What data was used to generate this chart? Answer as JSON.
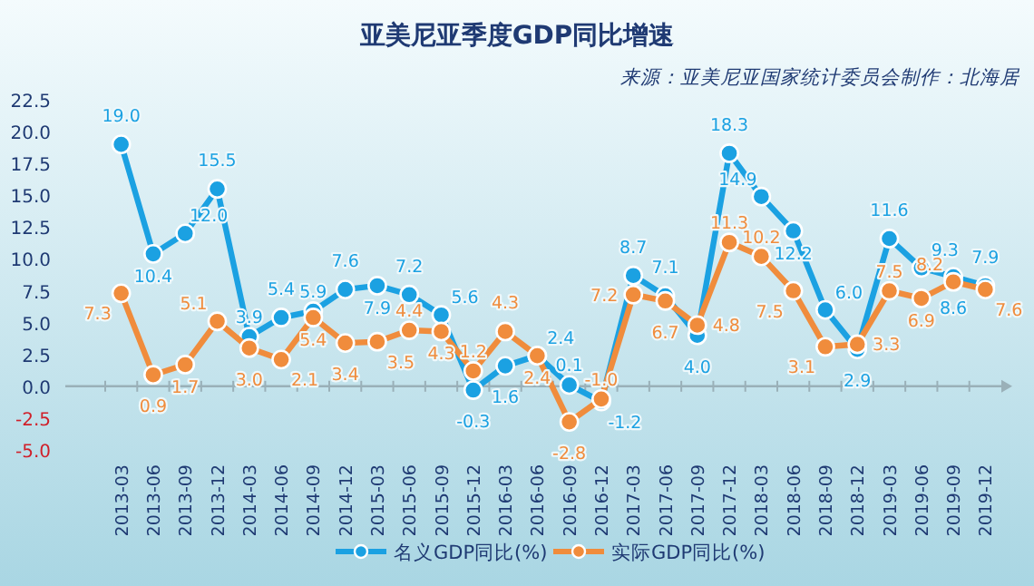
{
  "chart_data": {
    "type": "line",
    "title": "亚美尼亚季度GDP同比增速",
    "annotations": [
      "来源：亚美尼亚国家统计委员会制作：北海居"
    ],
    "categories": [
      "2013-03",
      "2013-06",
      "2013-09",
      "2013-12",
      "2014-03",
      "2014-06",
      "2014-09",
      "2014-12",
      "2015-03",
      "2015-06",
      "2015-09",
      "2015-12",
      "2016-03",
      "2016-06",
      "2016-09",
      "2016-12",
      "2017-03",
      "2017-06",
      "2017-09",
      "2017-12",
      "2018-03",
      "2018-06",
      "2018-09",
      "2018-12",
      "2019-03",
      "2019-06",
      "2019-09",
      "2019-12"
    ],
    "series": [
      {
        "name": "名义GDP同比(%)",
        "color": "#1ba1e2",
        "values": [
          19.0,
          10.4,
          12.0,
          15.5,
          3.9,
          5.4,
          5.9,
          7.6,
          7.9,
          7.2,
          5.6,
          -0.3,
          1.6,
          2.4,
          0.1,
          -1.2,
          8.7,
          7.1,
          4.0,
          18.3,
          14.9,
          12.2,
          6.0,
          2.9,
          11.6,
          9.3,
          8.6,
          7.9
        ],
        "value_labels": [
          "19.0",
          "10.4",
          "12.0",
          "15.5",
          "3.9",
          "5.4",
          "5.9",
          "7.6",
          "7.9",
          "7.2",
          "5.6",
          "-0.3",
          "1.6",
          "2.4",
          "0.1",
          "-1.2",
          "8.7",
          "7.1",
          "4.0",
          "18.3",
          "14.9",
          "12.2",
          "6.0",
          "2.9",
          "11.6",
          "9.3",
          "8.6",
          "7.9"
        ]
      },
      {
        "name": "实际GDP同比(%)",
        "color": "#f08c3c",
        "values": [
          7.3,
          0.9,
          1.7,
          5.1,
          3.0,
          2.1,
          5.4,
          3.4,
          3.5,
          4.4,
          4.3,
          1.2,
          4.3,
          2.4,
          -2.8,
          -1.0,
          7.2,
          6.7,
          4.8,
          11.3,
          10.2,
          7.5,
          3.1,
          3.3,
          7.5,
          6.9,
          8.2,
          7.6
        ],
        "value_labels": [
          "7.3",
          "0.9",
          "1.7",
          "5.1",
          "3.0",
          "2.1",
          "5.4",
          "3.4",
          "3.5",
          "4.4",
          "4.3",
          "1.2",
          "4.3",
          "2.4",
          "-2.8",
          "-1.0",
          "7.2",
          "6.7",
          "4.8",
          "11.3",
          "10.2",
          "7.5",
          "3.1",
          "3.3",
          "7.5",
          "6.9",
          "8.2",
          "7.6"
        ]
      }
    ],
    "ylim": [
      -5,
      22.5
    ],
    "yticks": [
      {
        "value": -5,
        "label": "-5.0"
      },
      {
        "value": -2.5,
        "label": "-2.5"
      },
      {
        "value": 0,
        "label": "0.0"
      },
      {
        "value": 2.5,
        "label": "2.5"
      },
      {
        "value": 5,
        "label": "5.0"
      },
      {
        "value": 7.5,
        "label": "7.5"
      },
      {
        "value": 10,
        "label": "10.0"
      },
      {
        "value": 12.5,
        "label": "12.5"
      },
      {
        "value": 15,
        "label": "15.0"
      },
      {
        "value": 17.5,
        "label": "17.5"
      },
      {
        "value": 20,
        "label": "20.0"
      },
      {
        "value": 22.5,
        "label": "22.5"
      }
    ],
    "marker": "circle",
    "legend": "bottom"
  }
}
